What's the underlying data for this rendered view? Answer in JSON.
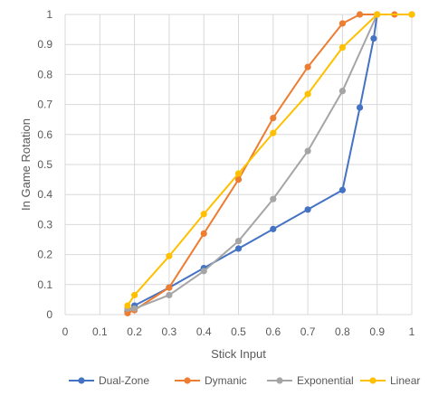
{
  "chart_data": {
    "type": "scatter",
    "xlabel": "Stick Input",
    "ylabel": "In Game Rotation",
    "xlim": [
      0,
      1
    ],
    "ylim": [
      0,
      1
    ],
    "x_ticks": [
      "0",
      "0.1",
      "0.2",
      "0.3",
      "0.4",
      "0.5",
      "0.6",
      "0.7",
      "0.8",
      "0.9",
      "1"
    ],
    "y_ticks": [
      "0",
      "0.1",
      "0.2",
      "0.3",
      "0.4",
      "0.5",
      "0.6",
      "0.7",
      "0.8",
      "0.9",
      "1"
    ],
    "grid": "vertical and horizontal",
    "legend_position": "bottom",
    "series": [
      {
        "name": "Dual-Zone",
        "color": "#4472C4",
        "points": [
          [
            0.18,
            0.01
          ],
          [
            0.2,
            0.03
          ],
          [
            0.3,
            0.09
          ],
          [
            0.4,
            0.155
          ],
          [
            0.5,
            0.22
          ],
          [
            0.6,
            0.285
          ],
          [
            0.7,
            0.35
          ],
          [
            0.8,
            0.415
          ],
          [
            0.85,
            0.69
          ],
          [
            0.89,
            0.92
          ],
          [
            0.9,
            1.0
          ]
        ]
      },
      {
        "name": "Dymanic",
        "color": "#ED7D31",
        "points": [
          [
            0.18,
            0.005
          ],
          [
            0.2,
            0.015
          ],
          [
            0.3,
            0.09
          ],
          [
            0.4,
            0.27
          ],
          [
            0.5,
            0.45
          ],
          [
            0.6,
            0.655
          ],
          [
            0.7,
            0.825
          ],
          [
            0.8,
            0.97
          ],
          [
            0.85,
            1.0
          ],
          [
            0.9,
            1.0
          ],
          [
            0.95,
            1.0
          ],
          [
            1.0,
            1.0
          ]
        ]
      },
      {
        "name": "Exponential",
        "color": "#A5A5A5",
        "points": [
          [
            0.18,
            0.02
          ],
          [
            0.2,
            0.02
          ],
          [
            0.3,
            0.065
          ],
          [
            0.4,
            0.145
          ],
          [
            0.5,
            0.245
          ],
          [
            0.6,
            0.385
          ],
          [
            0.7,
            0.545
          ],
          [
            0.8,
            0.745
          ],
          [
            0.9,
            1.0
          ]
        ]
      },
      {
        "name": "Linear",
        "color": "#FFC000",
        "points": [
          [
            0.18,
            0.03
          ],
          [
            0.2,
            0.065
          ],
          [
            0.3,
            0.195
          ],
          [
            0.4,
            0.335
          ],
          [
            0.5,
            0.47
          ],
          [
            0.6,
            0.605
          ],
          [
            0.7,
            0.735
          ],
          [
            0.8,
            0.89
          ],
          [
            0.9,
            1.0
          ],
          [
            1.0,
            1.0
          ]
        ]
      }
    ]
  }
}
